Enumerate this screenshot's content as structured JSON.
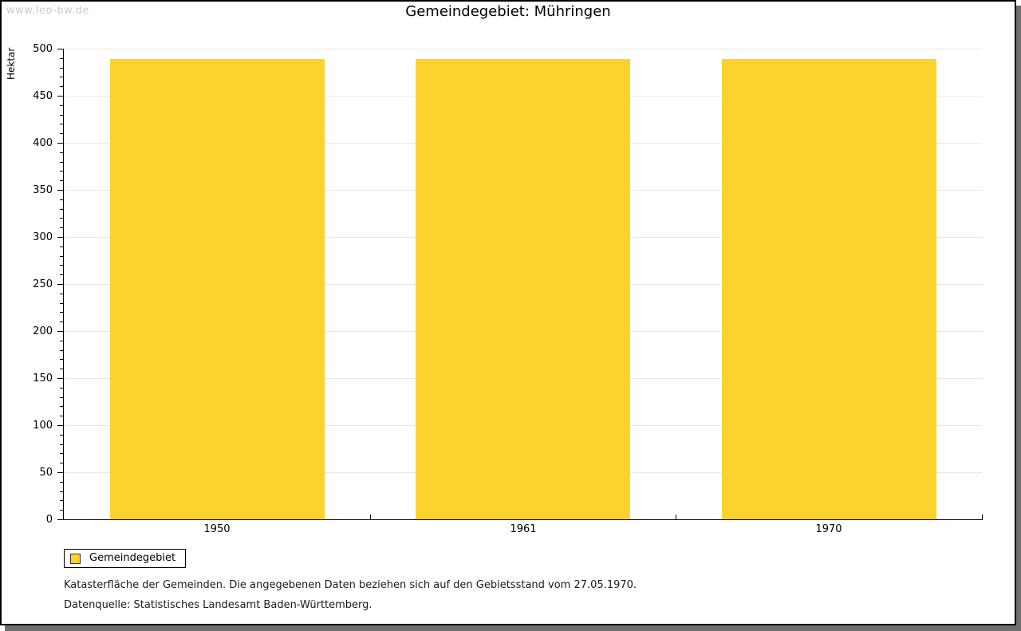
{
  "watermark": "www.leo-bw.de",
  "title": "Gemeindegebiet: Mühringen",
  "chart_data": {
    "type": "bar",
    "title": "Gemeindegebiet: Mühringen",
    "categories": [
      "1950",
      "1961",
      "1970"
    ],
    "series": [
      {
        "name": "Gemeindegebiet",
        "values": [
          489,
          489,
          489
        ]
      }
    ],
    "xlabel": "",
    "ylabel": "Hektar",
    "ylim": [
      0,
      500
    ],
    "ytick_interval": 50,
    "yminor_tick_interval": 10,
    "grid": "horizontal-major",
    "legend_position": "below-left",
    "bar_color": "#fcd32d"
  },
  "legend": {
    "items": [
      {
        "label": "Gemeindegebiet",
        "color": "#fcd32d"
      }
    ]
  },
  "footer": {
    "line1": "Katasterfläche der Gemeinden. Die angegebenen Daten beziehen sich auf den Gebietsstand vom 27.05.1970.",
    "line2": "Datenquelle: Statistisches Landesamt Baden-Württemberg."
  }
}
